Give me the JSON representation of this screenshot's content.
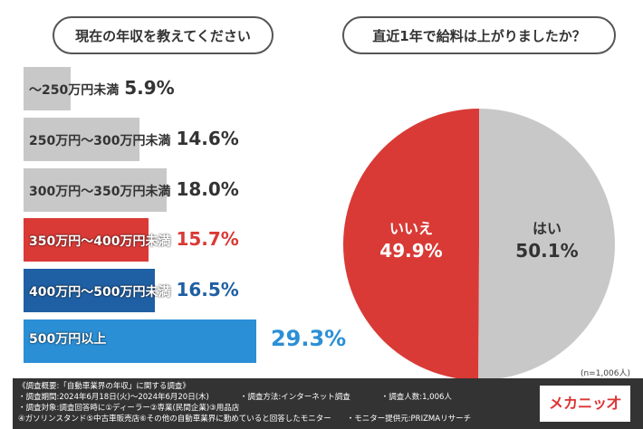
{
  "chart_data": [
    {
      "type": "bar",
      "orientation": "horizontal",
      "title": "現在の年収を教えてください",
      "categories": [
        "～250万円未満",
        "250万円～300万円未満",
        "300万円～350万円未満",
        "350万円～400万円未満",
        "400万円～500万円未満",
        "500万円以上"
      ],
      "values": [
        5.9,
        14.6,
        18.0,
        15.7,
        16.5,
        29.3
      ],
      "labels": [
        "5.9%",
        "14.6%",
        "18.0%",
        "15.7%",
        "16.5%",
        "29.3%"
      ],
      "colors": [
        "#c8c8c8",
        "#c8c8c8",
        "#c8c8c8",
        "#d93a36",
        "#1f5fa3",
        "#2b8fd6"
      ],
      "text_colors": [
        "#333333",
        "#333333",
        "#333333",
        "#d93a36",
        "#1f5fa3",
        "#2b8fd6"
      ]
    },
    {
      "type": "pie",
      "title": "直近1年で給料は上がりましたか？",
      "slices": [
        {
          "label": "はい",
          "value": 50.1,
          "text": "50.1%",
          "color": "#c8c8c8"
        },
        {
          "label": "いいえ",
          "value": 49.9,
          "text": "49.9%",
          "color": "#d93a36"
        }
      ]
    }
  ],
  "note": "(n=1,006人)",
  "footer": {
    "lines": [
      "《調査概要:「自動車業界の年収」に関する調査》",
      "・調査期間:2024年6月18日(火)～2024年6月20日(木)　　　　・調査方法:インターネット調査　　　　・調査人数:1,006人",
      "・調査対象:調査回答時に①ディーラー②専業(民間企業)③用品店",
      "④ガソリンスタンド⑤中古車販売店⑥その他の自動車業界に勤めていると回答したモニター　　・モニター提供元:PRIZMAリサーチ"
    ],
    "logo": "メカニッ才"
  }
}
